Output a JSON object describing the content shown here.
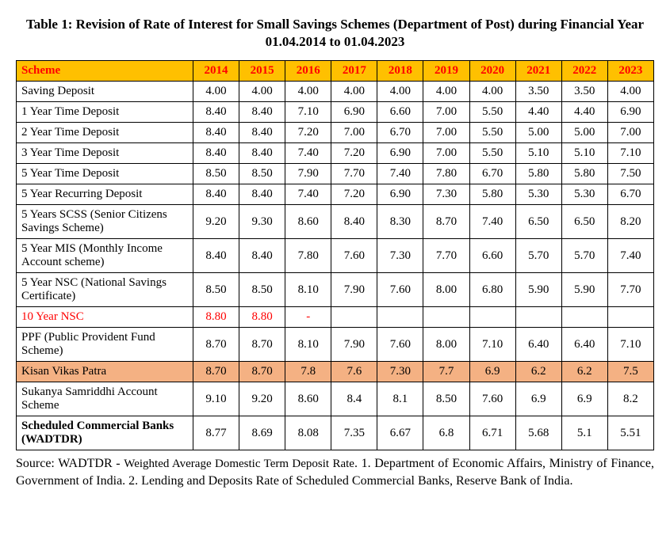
{
  "title": "Table 1: Revision of Rate of Interest for Small Savings Schemes (Department of Post) during Financial Year 01.04.2014 to 01.04.2023",
  "table": {
    "header_scheme": "Scheme",
    "years": [
      "2014",
      "2015",
      "2016",
      "2017",
      "2018",
      "2019",
      "2020",
      "2021",
      "2022",
      "2023"
    ],
    "rows": [
      {
        "scheme": "Saving Deposit",
        "vals": [
          "4.00",
          "4.00",
          "4.00",
          "4.00",
          "4.00",
          "4.00",
          "4.00",
          "3.50",
          "3.50",
          "4.00"
        ]
      },
      {
        "scheme": "1 Year Time Deposit",
        "vals": [
          "8.40",
          "8.40",
          "7.10",
          "6.90",
          "6.60",
          "7.00",
          "5.50",
          "4.40",
          "4.40",
          "6.90"
        ]
      },
      {
        "scheme": "2 Year Time Deposit",
        "vals": [
          "8.40",
          "8.40",
          "7.20",
          "7.00",
          "6.70",
          "7.00",
          "5.50",
          "5.00",
          "5.00",
          "7.00"
        ]
      },
      {
        "scheme": "3 Year Time Deposit",
        "vals": [
          "8.40",
          "8.40",
          "7.40",
          "7.20",
          "6.90",
          "7.00",
          "5.50",
          "5.10",
          "5.10",
          "7.10"
        ]
      },
      {
        "scheme": "5 Year Time Deposit",
        "vals": [
          "8.50",
          "8.50",
          "7.90",
          "7.70",
          "7.40",
          "7.80",
          "6.70",
          "5.80",
          "5.80",
          "7.50"
        ]
      },
      {
        "scheme": "5 Year Recurring Deposit",
        "vals": [
          "8.40",
          "8.40",
          "7.40",
          "7.20",
          "6.90",
          "7.30",
          "5.80",
          "5.30",
          "5.30",
          "6.70"
        ]
      },
      {
        "scheme": "5 Years SCSS (Senior Citizens Savings Scheme)",
        "vals": [
          "9.20",
          "9.30",
          "8.60",
          "8.40",
          "8.30",
          "8.70",
          "7.40",
          "6.50",
          "6.50",
          "8.20"
        ]
      },
      {
        "scheme": "5 Year MIS (Monthly Income Account scheme)",
        "vals": [
          "8.40",
          "8.40",
          "7.80",
          "7.60",
          "7.30",
          "7.70",
          "6.60",
          "5.70",
          "5.70",
          "7.40"
        ]
      },
      {
        "scheme": "5 Year NSC (National Savings Certificate)",
        "vals": [
          "8.50",
          "8.50",
          "8.10",
          "7.90",
          "7.60",
          "8.00",
          "6.80",
          "5.90",
          "5.90",
          "7.70"
        ]
      },
      {
        "scheme": "10 Year NSC",
        "vals": [
          "8.80",
          "8.80",
          "-",
          "",
          "",
          "",
          "",
          "",
          "",
          ""
        ],
        "red": true
      },
      {
        "scheme": "PPF (Public Provident Fund Scheme)",
        "vals": [
          "8.70",
          "8.70",
          "8.10",
          "7.90",
          "7.60",
          "8.00",
          "7.10",
          "6.40",
          "6.40",
          "7.10"
        ]
      },
      {
        "scheme": "Kisan Vikas Patra",
        "vals": [
          "8.70",
          "8.70",
          "7.8",
          "7.6",
          "7.30",
          "7.7",
          "6.9",
          "6.2",
          "6.2",
          "7.5"
        ],
        "highlight": true
      },
      {
        "scheme": "Sukanya Samriddhi Account Scheme",
        "vals": [
          "9.10",
          "9.20",
          "8.60",
          "8.4",
          "8.1",
          "8.50",
          "7.60",
          "6.9",
          "6.9",
          "8.2"
        ]
      },
      {
        "scheme": "Scheduled Commercial Banks (WADTDR)",
        "vals": [
          "8.77",
          "8.69",
          "8.08",
          "7.35",
          "6.67",
          "6.8",
          "6.71",
          "5.68",
          "5.1",
          "5.51"
        ],
        "bold": true
      }
    ]
  },
  "source_prefix": "Source: WADTDR - ",
  "source_wadtdr": "Weighted Average Domestic Term Deposit Rate",
  "source_suffix": ". 1. Department of Economic Affairs, Ministry of Finance, Government of India. 2. Lending and Deposits Rate of Scheduled Commercial Banks, Reserve Bank of India.",
  "colors": {
    "header_bg": "#ffc000",
    "header_text": "#ff0000",
    "highlight_bg": "#f4b183",
    "red_text": "#ff0000",
    "border": "#000000",
    "background": "#ffffff"
  }
}
